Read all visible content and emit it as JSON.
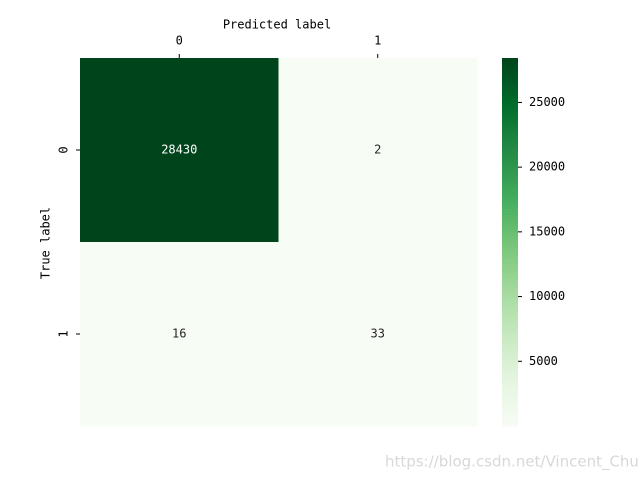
{
  "chart_data": {
    "type": "heatmap",
    "x_label": "Predicted label",
    "y_label": "True label",
    "x_categories": [
      "0",
      "1"
    ],
    "y_categories": [
      "0",
      "1"
    ],
    "values": [
      [
        28430,
        2
      ],
      [
        16,
        33
      ]
    ],
    "colormap": "Greens",
    "zlim": [
      2,
      28430
    ],
    "zticks": [
      5000,
      10000,
      15000,
      20000,
      25000
    ],
    "watermark": "https://blog.csdn.net/Vincent_Chu"
  }
}
